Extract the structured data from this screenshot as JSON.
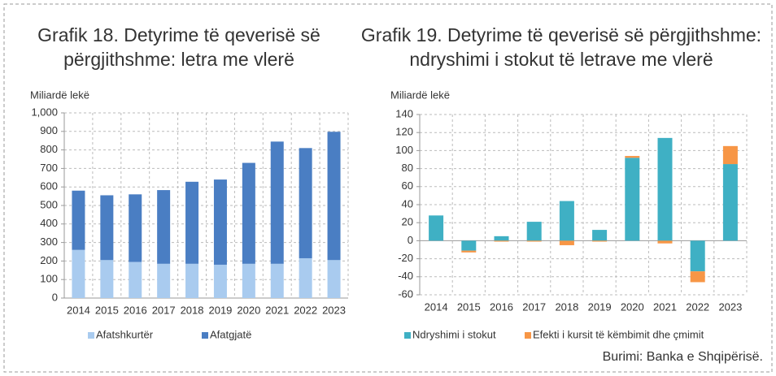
{
  "chart_data": [
    {
      "type": "stacked_bar",
      "title": "Grafik 18. Detyrime të qeverisë së\npërgjithshme: letra me vlerë",
      "y_label": "Miliardë lekë",
      "categories": [
        "2014",
        "2015",
        "2016",
        "2017",
        "2018",
        "2019",
        "2020",
        "2021",
        "2022",
        "2023"
      ],
      "series": [
        {
          "name": "Afatshkurtër",
          "color": "#a9cbef",
          "values": [
            260,
            205,
            195,
            185,
            185,
            180,
            185,
            185,
            215,
            205
          ]
        },
        {
          "name": "Afatgjatë",
          "color": "#4a7ec3",
          "values": [
            320,
            350,
            365,
            398,
            443,
            460,
            545,
            660,
            595,
            693
          ]
        }
      ],
      "ylim": [
        0,
        1000
      ],
      "yticks": [
        0,
        100,
        200,
        300,
        400,
        500,
        600,
        700,
        800,
        900,
        {
          "value": 1000,
          "label": "1,000"
        }
      ],
      "grid": true
    },
    {
      "type": "stacked_bar",
      "title": "Grafik 19. Detyrime të qeverisë së përgjithshme:\nndryshimi i stokut të letrave me vlerë",
      "y_label": "Miliardë lekë",
      "categories": [
        "2014",
        "2015",
        "2016",
        "2017",
        "2018",
        "2019",
        "2020",
        "2021",
        "2022",
        "2023"
      ],
      "series": [
        {
          "name": "Ndryshimi i stokut",
          "color": "#3fb0c4",
          "values": [
            28,
            -11,
            5,
            21,
            44,
            12,
            92,
            114,
            -34,
            85
          ]
        },
        {
          "name": "Efekti i kursit të këmbimit dhe çmimit",
          "color": "#f79646",
          "values": [
            0,
            -2,
            -1,
            -1,
            -5,
            -1,
            2,
            -3,
            -12,
            20
          ]
        }
      ],
      "ylim": [
        -60,
        140
      ],
      "yticks": [
        -60,
        -40,
        -20,
        0,
        20,
        40,
        60,
        80,
        100,
        120,
        140
      ],
      "grid": true
    }
  ],
  "source": "Burimi: Banka e Shqipërisë."
}
